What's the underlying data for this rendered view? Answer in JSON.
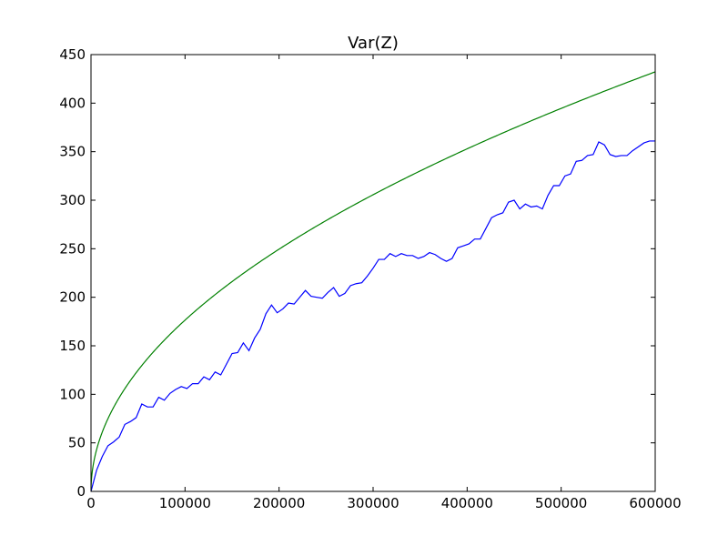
{
  "chart_data": {
    "type": "line",
    "title": "Var(Z)",
    "xlabel": "",
    "ylabel": "",
    "xlim": [
      0,
      600000
    ],
    "ylim": [
      0,
      450
    ],
    "x_ticks": [
      0,
      100000,
      200000,
      300000,
      400000,
      500000,
      600000
    ],
    "y_ticks": [
      0,
      50,
      100,
      150,
      200,
      250,
      300,
      350,
      400,
      450
    ],
    "grid": false,
    "legend": "none",
    "series": [
      {
        "color": "#0000ff",
        "x": [
          0,
          6000,
          12000,
          18000,
          24000,
          30000,
          36000,
          42000,
          48000,
          54000,
          60000,
          66000,
          72000,
          78000,
          84000,
          90000,
          96000,
          102000,
          108000,
          114000,
          120000,
          126000,
          132000,
          138000,
          144000,
          150000,
          156000,
          162000,
          168000,
          174000,
          180000,
          186000,
          192000,
          198000,
          204000,
          210000,
          216000,
          222000,
          228000,
          234000,
          240000,
          246000,
          252000,
          258000,
          264000,
          270000,
          276000,
          282000,
          288000,
          294000,
          300000,
          306000,
          312000,
          318000,
          324000,
          330000,
          336000,
          342000,
          348000,
          354000,
          360000,
          366000,
          372000,
          378000,
          384000,
          390000,
          396000,
          402000,
          408000,
          414000,
          420000,
          426000,
          432000,
          438000,
          444000,
          450000,
          456000,
          462000,
          468000,
          474000,
          480000,
          486000,
          492000,
          498000,
          504000,
          510000,
          516000,
          522000,
          528000,
          534000,
          540000,
          546000,
          552000,
          558000,
          564000,
          570000,
          576000,
          582000,
          588000,
          594000,
          600000
        ],
        "values": [
          0,
          22,
          36,
          47,
          51,
          56,
          69,
          72,
          76,
          90,
          87,
          87,
          97,
          94,
          101,
          105,
          108,
          106,
          111,
          111,
          118,
          115,
          123,
          120,
          131,
          142,
          143,
          153,
          145,
          158,
          167,
          183,
          192,
          184,
          188,
          194,
          193,
          200,
          207,
          201,
          200,
          199,
          205,
          210,
          201,
          204,
          212,
          214,
          215,
          222,
          230,
          239,
          239,
          245,
          242,
          245,
          243,
          243,
          240,
          242,
          246,
          244,
          240,
          237,
          240,
          251,
          253,
          255,
          260,
          260,
          271,
          282,
          285,
          287,
          298,
          300,
          291,
          296,
          293,
          294,
          291,
          305,
          315,
          315,
          325,
          327,
          340,
          341,
          346,
          347,
          360,
          357,
          347,
          345,
          346,
          346,
          351,
          355,
          359,
          361,
          361
        ]
      },
      {
        "color": "#008000",
        "function": "0.558 * sqrt(x)"
      }
    ]
  }
}
